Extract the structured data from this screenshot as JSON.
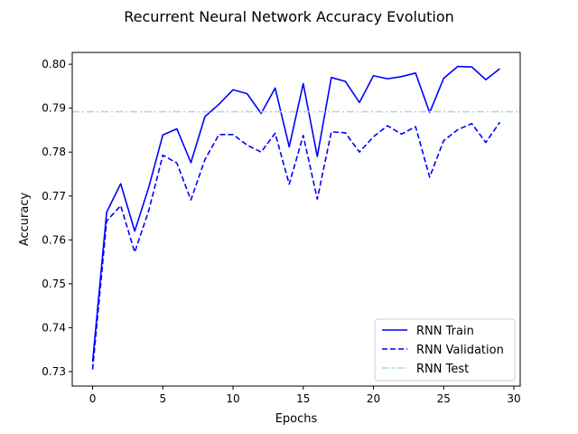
{
  "chart_data": {
    "type": "line",
    "title": "Recurrent Neural Network Accuracy Evolution",
    "xlabel": "Epochs",
    "ylabel": "Accuracy",
    "xlim": [
      -1.45,
      30.45
    ],
    "ylim": [
      0.7267,
      0.8027
    ],
    "xticks": [
      0,
      5,
      10,
      15,
      20,
      25,
      30
    ],
    "yticks": [
      0.73,
      0.74,
      0.75,
      0.76,
      0.77,
      0.78,
      0.79,
      0.8
    ],
    "ytick_labels": [
      "0.73",
      "0.74",
      "0.75",
      "0.76",
      "0.77",
      "0.78",
      "0.79",
      "0.80"
    ],
    "grid": false,
    "legend_position": "lower-right",
    "x": [
      0,
      1,
      2,
      3,
      4,
      5,
      6,
      7,
      8,
      9,
      10,
      11,
      12,
      13,
      14,
      15,
      16,
      17,
      18,
      19,
      20,
      21,
      22,
      23,
      24,
      25,
      26,
      27,
      28,
      29
    ],
    "series": [
      {
        "name": "RNN Train",
        "style": "solid",
        "color": "#0000ff",
        "values": [
          0.7322,
          0.7663,
          0.7728,
          0.762,
          0.772,
          0.7839,
          0.7853,
          0.7776,
          0.7881,
          0.7909,
          0.7942,
          0.7933,
          0.7888,
          0.7946,
          0.7812,
          0.7956,
          0.779,
          0.797,
          0.7961,
          0.7913,
          0.7974,
          0.7967,
          0.7972,
          0.798,
          0.789,
          0.7968,
          0.7995,
          0.7994,
          0.7965,
          0.799
        ]
      },
      {
        "name": "RNN Validation",
        "style": "dashed",
        "color": "#0000ff",
        "values": [
          0.7305,
          0.7643,
          0.7678,
          0.7572,
          0.7667,
          0.7793,
          0.7775,
          0.7691,
          0.7783,
          0.784,
          0.784,
          0.7816,
          0.78,
          0.7843,
          0.7727,
          0.7838,
          0.7693,
          0.7846,
          0.7844,
          0.78,
          0.7835,
          0.786,
          0.7841,
          0.7858,
          0.7743,
          0.7826,
          0.7851,
          0.7865,
          0.7822,
          0.7868
        ]
      },
      {
        "name": "RNN Test",
        "style": "dashdot",
        "color": "#add8e6",
        "hline": 0.7892
      }
    ]
  }
}
